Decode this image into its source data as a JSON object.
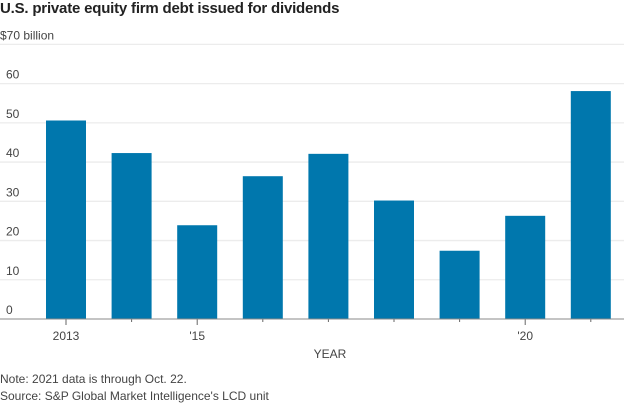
{
  "chart_data": {
    "type": "bar",
    "title": "U.S. private equity firm debt issued for dividends",
    "ylabel": "$70 billion",
    "xlabel": "YEAR",
    "ylim": [
      0,
      70
    ],
    "yticks": [
      0,
      10,
      20,
      30,
      40,
      50,
      60
    ],
    "grid": true,
    "categories": [
      "2013",
      "2014",
      "2015",
      "2016",
      "2017",
      "2018",
      "2019",
      "2020",
      "2021"
    ],
    "xtick_labels": [
      "2013",
      "",
      "'15",
      "",
      "",
      "",
      "",
      "'20",
      ""
    ],
    "values": [
      50.6,
      42.3,
      23.9,
      36.4,
      42.1,
      30.2,
      17.4,
      26.3,
      58.1
    ],
    "bar_color": "#0077ad"
  },
  "notes": {
    "note": "Note: 2021 data is through Oct. 22.",
    "source": "Source: S&P Global Market Intelligence's LCD unit"
  }
}
